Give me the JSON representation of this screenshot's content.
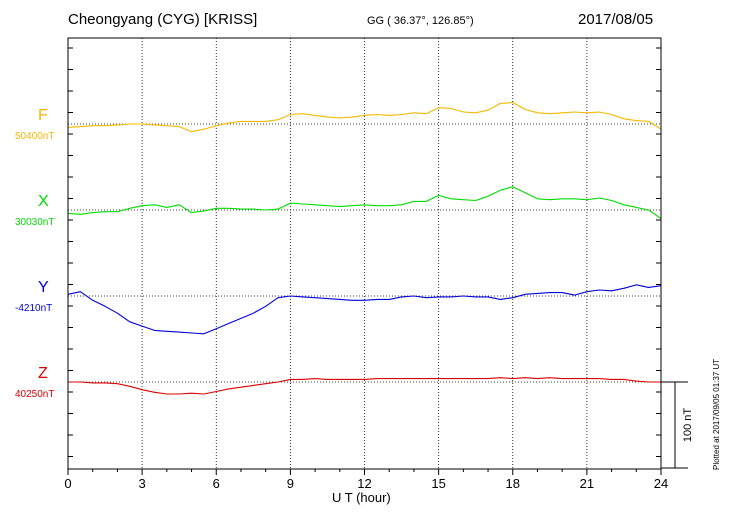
{
  "header": {
    "station": "Cheongyang (CYG)  [KRISS]",
    "coords": "GG ( 36.37°, 126.85°)",
    "date": "2017/08/05"
  },
  "footer": {
    "plotted": "Plotted at 2017/09/05 01:37 UT"
  },
  "chart_data": {
    "type": "line",
    "xlabel": "U T (hour)",
    "xlim": [
      0,
      24
    ],
    "xticks": [
      0,
      3,
      6,
      9,
      12,
      15,
      18,
      21,
      24
    ],
    "grid": true,
    "scale_bar_label": "100 nT",
    "scale_bar_nT": 100,
    "series": [
      {
        "name": "F",
        "baseline_label": "50400nT",
        "baseline_nT": 50400,
        "color": "#f5b800",
        "x": [
          0,
          0.5,
          1,
          1.5,
          2,
          2.5,
          3,
          3.5,
          4,
          4.5,
          5,
          5.5,
          6,
          6.5,
          7,
          7.5,
          8,
          8.5,
          9,
          9.5,
          10,
          10.5,
          11,
          11.5,
          12,
          12.5,
          13,
          13.5,
          14,
          14.5,
          15,
          15.5,
          16,
          16.5,
          17,
          17.5,
          18,
          18.5,
          19,
          19.5,
          20,
          20.5,
          21,
          21.5,
          22,
          22.5,
          23,
          23.5,
          24
        ],
        "y": [
          50396,
          50397,
          50398,
          50398,
          50399,
          50400,
          50400,
          50399,
          50398,
          50397,
          50391,
          50394,
          50398,
          50401,
          50403,
          50403,
          50403,
          50405,
          50411,
          50412,
          50410,
          50408,
          50407,
          50408,
          50410,
          50411,
          50410,
          50411,
          50413,
          50412,
          50419,
          50418,
          50414,
          50413,
          50416,
          50424,
          50425,
          50417,
          50413,
          50412,
          50413,
          50414,
          50413,
          50414,
          50411,
          50406,
          50404,
          50403,
          50394
        ]
      },
      {
        "name": "X",
        "baseline_label": "30030nT",
        "baseline_nT": 30030,
        "color": "#00dd00",
        "x": [
          0,
          0.5,
          1,
          1.5,
          2,
          2.5,
          3,
          3.5,
          4,
          4.5,
          5,
          5.5,
          6,
          6.5,
          7,
          7.5,
          8,
          8.5,
          9,
          9.5,
          10,
          10.5,
          11,
          11.5,
          12,
          12.5,
          13,
          13.5,
          14,
          14.5,
          15,
          15.5,
          16,
          16.5,
          17,
          17.5,
          18,
          18.5,
          19,
          19.5,
          20,
          20.5,
          21,
          21.5,
          22,
          22.5,
          23,
          23.5,
          24
        ],
        "y": [
          30026,
          30025,
          30027,
          30028,
          30028,
          30032,
          30035,
          30036,
          30033,
          30036,
          30027,
          30029,
          30032,
          30032,
          30031,
          30031,
          30030,
          30031,
          30038,
          30037,
          30036,
          30035,
          30034,
          30035,
          30036,
          30035,
          30035,
          30036,
          30040,
          30040,
          30047,
          30043,
          30042,
          30041,
          30046,
          30053,
          30057,
          30050,
          30043,
          30042,
          30043,
          30043,
          30042,
          30044,
          30041,
          30036,
          30033,
          30030,
          30020
        ]
      },
      {
        "name": "Y",
        "baseline_label": "-4210nT",
        "baseline_nT": -4210,
        "color": "#0000dd",
        "x": [
          0,
          0.5,
          1,
          1.5,
          2,
          2.5,
          3,
          3.5,
          4,
          4.5,
          5,
          5.5,
          6,
          6.5,
          7,
          7.5,
          8,
          8.5,
          9,
          9.5,
          10,
          10.5,
          11,
          11.5,
          12,
          12.5,
          13,
          13.5,
          14,
          14.5,
          15,
          15.5,
          16,
          16.5,
          17,
          17.5,
          18,
          18.5,
          19,
          19.5,
          20,
          20.5,
          21,
          21.5,
          22,
          22.5,
          23,
          23.5,
          24
        ],
        "y": [
          -4208,
          -4205,
          -4215,
          -4222,
          -4230,
          -4240,
          -4245,
          -4250,
          -4251,
          -4252,
          -4253,
          -4254,
          -4248,
          -4242,
          -4236,
          -4230,
          -4222,
          -4212,
          -4210,
          -4211,
          -4212,
          -4213,
          -4214,
          -4215,
          -4215,
          -4214,
          -4214,
          -4211,
          -4210,
          -4212,
          -4211,
          -4211,
          -4210,
          -4211,
          -4211,
          -4214,
          -4212,
          -4208,
          -4207,
          -4206,
          -4206,
          -4209,
          -4205,
          -4203,
          -4204,
          -4201,
          -4197,
          -4200,
          -4198
        ]
      },
      {
        "name": "Z",
        "baseline_label": "40250nT",
        "baseline_nT": 40250,
        "color": "#dd0000",
        "x": [
          0,
          0.5,
          1,
          1.5,
          2,
          2.5,
          3,
          3.5,
          4,
          4.5,
          5,
          5.5,
          6,
          6.5,
          7,
          7.5,
          8,
          8.5,
          9,
          9.5,
          10,
          10.5,
          11,
          11.5,
          12,
          12.5,
          13,
          13.5,
          14,
          14.5,
          15,
          15.5,
          16,
          16.5,
          17,
          17.5,
          18,
          18.5,
          19,
          19.5,
          20,
          20.5,
          21,
          21.5,
          22,
          22.5,
          23,
          23.5,
          24
        ],
        "y": [
          40250,
          40250,
          40249,
          40249,
          40248,
          40245,
          40241,
          40238,
          40236,
          40236,
          40237,
          40236,
          40239,
          40242,
          40244,
          40246,
          40248,
          40250,
          40253,
          40253,
          40254,
          40253,
          40253,
          40253,
          40253,
          40254,
          40254,
          40254,
          40254,
          40254,
          40254,
          40254,
          40254,
          40254,
          40254,
          40255,
          40254,
          40255,
          40254,
          40255,
          40254,
          40254,
          40254,
          40254,
          40253,
          40253,
          40251,
          40250,
          40250
        ]
      }
    ]
  }
}
